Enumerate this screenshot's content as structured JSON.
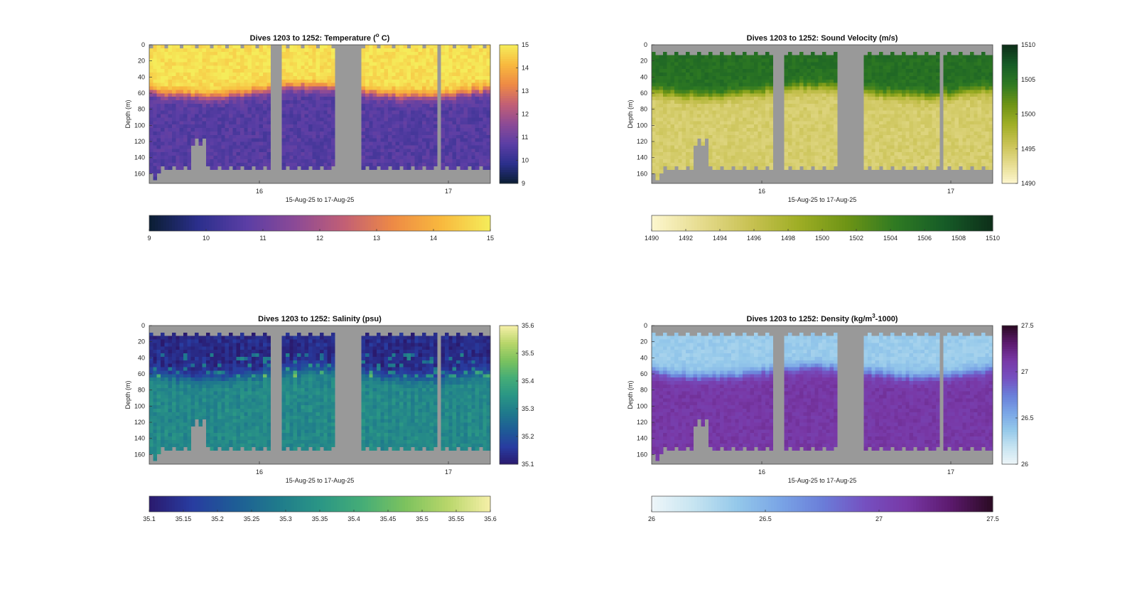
{
  "chart_data": [
    {
      "type": "heatmap",
      "variable": "temperature",
      "title": "Dives 1203 to 1252: Temperature (",
      "title_super": "o",
      "title_tail": " C)",
      "xlabel": "15-Aug-25 to 17-Aug-25",
      "ylabel": "Depth (m)",
      "x_ticks": [
        "16",
        "17"
      ],
      "ylim": [
        0,
        172
      ],
      "y_ticks": [
        0,
        20,
        40,
        60,
        80,
        100,
        120,
        140,
        160
      ],
      "color_range": [
        9,
        15
      ],
      "colorbar_ticks": [
        9,
        10,
        11,
        12,
        13,
        14,
        15
      ],
      "h_colorbar_ticks": [
        9,
        10,
        11,
        12,
        13,
        14,
        15
      ],
      "h_colorbar_labels": [
        "9",
        "10",
        "11",
        "12",
        "13",
        "14",
        "15"
      ],
      "colormap": [
        "#0a1e32",
        "#2b2f8c",
        "#5b3ea5",
        "#8c4a96",
        "#c25f75",
        "#ee8a45",
        "#f8b93e",
        "#f5ec5a"
      ],
      "profile": {
        "surface": 14.8,
        "bottom": 10.6,
        "thermocline_depth": 58,
        "thermocline_width": 11,
        "noise": 0.3
      }
    },
    {
      "type": "heatmap",
      "variable": "sound_velocity",
      "title": "Dives 1203 to 1252: Sound Velocity (m/s)",
      "xlabel": "15-Aug-25 to 17-Aug-25",
      "ylabel": "Depth (m)",
      "x_ticks": [
        "16",
        "17"
      ],
      "ylim": [
        0,
        172
      ],
      "y_ticks": [
        0,
        20,
        40,
        60,
        80,
        100,
        120,
        140,
        160
      ],
      "color_range": [
        1490,
        1510
      ],
      "colorbar_ticks": [
        1490,
        1495,
        1500,
        1505,
        1510
      ],
      "h_colorbar_ticks": [
        1490,
        1492,
        1494,
        1496,
        1498,
        1500,
        1502,
        1504,
        1506,
        1508,
        1510
      ],
      "h_colorbar_labels": [
        "1490",
        "1492",
        "1494",
        "1496",
        "1498",
        "1500",
        "1502",
        "1504",
        "1506",
        "1508",
        "1510"
      ],
      "colormap": [
        "#fdf7cf",
        "#e6dc8f",
        "#c9c254",
        "#9fae25",
        "#6e9415",
        "#2f7a22",
        "#165c27",
        "#0d2e19"
      ],
      "profile": {
        "surface": 1505.3,
        "bottom": 1494.5,
        "thermocline_depth": 58,
        "thermocline_width": 11,
        "noise": 0.8
      }
    },
    {
      "type": "heatmap",
      "variable": "salinity",
      "title": "Dives 1203 to 1252: Salinity (psu)",
      "xlabel": "15-Aug-25 to 17-Aug-25",
      "ylabel": "Depth (m)",
      "x_ticks": [
        "16",
        "17"
      ],
      "ylim": [
        0,
        172
      ],
      "y_ticks": [
        0,
        20,
        40,
        60,
        80,
        100,
        120,
        140,
        160
      ],
      "color_range": [
        35.1,
        35.6
      ],
      "colorbar_ticks": [
        35.1,
        35.2,
        35.3,
        35.4,
        35.5,
        35.6
      ],
      "colorbar_labels": [
        "35.1",
        "35.2",
        "35.3",
        "35.4",
        "35.5",
        "35.6"
      ],
      "h_colorbar_ticks": [
        35.1,
        35.15,
        35.2,
        35.25,
        35.3,
        35.35,
        35.4,
        35.45,
        35.5,
        35.55,
        35.6
      ],
      "h_colorbar_labels": [
        "35.1",
        "35.15",
        "35.2",
        "35.25",
        "35.3",
        "35.35",
        "35.4",
        "35.45",
        "35.5",
        "35.55",
        "35.6"
      ],
      "colormap": [
        "#2a1a6e",
        "#283ca0",
        "#1e5c96",
        "#1f7a8c",
        "#2a9685",
        "#45ad77",
        "#7cc25e",
        "#b8d66a",
        "#f6f0a8"
      ],
      "profile": {
        "surface": 35.14,
        "bottom": 35.33,
        "thermocline_depth": 60,
        "thermocline_width": 12,
        "noise": 0.025
      }
    },
    {
      "type": "heatmap",
      "variable": "density",
      "title": "Dives 1203 to 1252: Density (kg/m",
      "title_super": "3",
      "title_tail": "-1000)",
      "xlabel": "15-Aug-25 to 17-Aug-25",
      "ylabel": "Depth (m)",
      "x_ticks": [
        "16",
        "17"
      ],
      "ylim": [
        0,
        172
      ],
      "y_ticks": [
        0,
        20,
        40,
        60,
        80,
        100,
        120,
        140,
        160
      ],
      "color_range": [
        26,
        27.5
      ],
      "colorbar_ticks": [
        26,
        26.5,
        27,
        27.5
      ],
      "colorbar_labels": [
        "26",
        "26.5",
        "27",
        "27.5"
      ],
      "h_colorbar_ticks": [
        26,
        26.5,
        27,
        27.5
      ],
      "h_colorbar_labels": [
        "26",
        "26.5",
        "27",
        "27.5"
      ],
      "colormap": [
        "#eef6f9",
        "#c6e4f1",
        "#94c8ea",
        "#7aa5e6",
        "#6a7ed9",
        "#7550c0",
        "#7838a6",
        "#5c1a6e",
        "#2a0a22"
      ],
      "profile": {
        "surface": 26.35,
        "bottom": 27.12,
        "thermocline_depth": 58,
        "thermocline_width": 11,
        "noise": 0.05
      }
    }
  ],
  "nan_color": "#999999"
}
